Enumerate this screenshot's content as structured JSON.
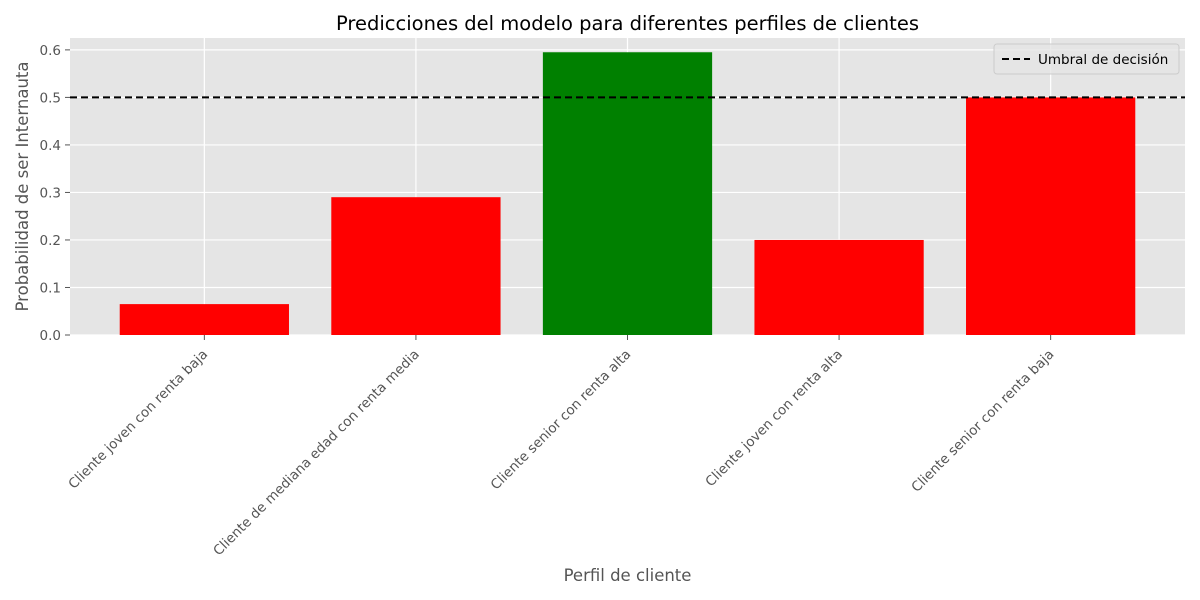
{
  "chart_data": {
    "type": "bar",
    "title": "Predicciones del modelo para diferentes perfiles de clientes",
    "xlabel": "Perfil de cliente",
    "ylabel": "Probabilidad de ser Internauta",
    "categories": [
      "Cliente joven con renta baja",
      "Cliente de mediana edad con renta media",
      "Cliente senior con renta alta",
      "Cliente joven con renta alta",
      "Cliente senior con renta baja"
    ],
    "values": [
      0.065,
      0.29,
      0.595,
      0.2,
      0.5
    ],
    "bar_colors": [
      "#ff0000",
      "#ff0000",
      "#008000",
      "#ff0000",
      "#ff0000"
    ],
    "ylim": [
      0,
      0.6
    ],
    "yticks": [
      "0.0",
      "0.1",
      "0.2",
      "0.3",
      "0.4",
      "0.5",
      "0.6"
    ],
    "threshold": {
      "value": 0.5,
      "label": "Umbral de decisión",
      "color": "#000000",
      "style": "dashed"
    },
    "legend": {
      "position": "top-right",
      "entries": [
        "Umbral de decisión"
      ]
    },
    "grid": true,
    "background_color": "#e5e5e5",
    "grid_color": "#ffffff"
  }
}
